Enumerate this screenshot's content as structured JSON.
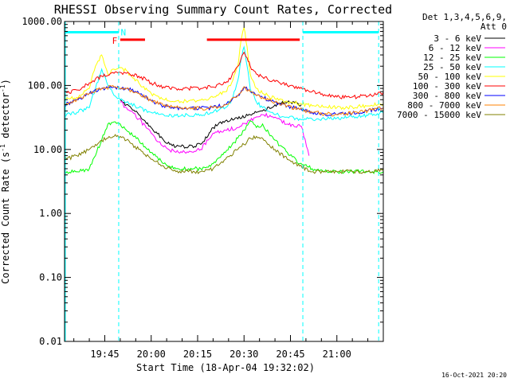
{
  "chart_data": {
    "type": "line",
    "title": "RHESSI Observing Summary Count Rates, Corrected",
    "xlabel": "Start Time (18-Apr-04 19:32:02)",
    "ylabel_main": "Corrected Count Rate (s",
    "ylabel_sup": "-1",
    "ylabel_end": " detector",
    "ylabel_sup2": "-1",
    "ylabel_close": ")",
    "yscale": "log",
    "ylim": [
      0.01,
      1000
    ],
    "xlim_min": [
      32,
      135
    ],
    "yticks": [
      {
        "v": 1000,
        "label": "1000.00"
      },
      {
        "v": 100,
        "label": "100.00"
      },
      {
        "v": 10,
        "label": "10.00"
      },
      {
        "v": 1,
        "label": "1.00"
      },
      {
        "v": 0.1,
        "label": "0.10"
      },
      {
        "v": 0.01,
        "label": "0.01"
      }
    ],
    "xticks": [
      {
        "t": 45,
        "label": "19:45"
      },
      {
        "t": 60,
        "label": "20:00"
      },
      {
        "t": 75,
        "label": "20:15"
      },
      {
        "t": 90,
        "label": "20:30"
      },
      {
        "t": 105,
        "label": "20:45"
      },
      {
        "t": 120,
        "label": "21:00"
      }
    ],
    "legend_header": [
      "Det 1,3,4,5,6,9,",
      "Att 0"
    ],
    "legend_placement": "right",
    "series": [
      {
        "name": "3 - 6 keV",
        "color": "#000000",
        "t": [
          50,
          52,
          56,
          60,
          64,
          68,
          72,
          76,
          80,
          84,
          88,
          92,
          96,
          100,
          104,
          108.5
        ],
        "y": [
          60,
          50,
          35,
          22,
          14,
          11,
          11,
          12,
          22,
          28,
          30,
          35,
          40,
          50,
          55,
          50
        ]
      },
      {
        "name": "6 - 12 keV",
        "color": "#ff00ff",
        "t": [
          50,
          52,
          56,
          60,
          64,
          68,
          72,
          76,
          80,
          84,
          88,
          92,
          96,
          100,
          104,
          108.5,
          111
        ],
        "y": [
          55,
          45,
          30,
          18,
          11,
          9,
          9,
          10,
          18,
          20,
          22,
          28,
          35,
          32,
          25,
          23,
          8
        ]
      },
      {
        "name": "12 - 25 keV",
        "color": "#00ff00",
        "t": [
          32,
          36,
          40,
          44,
          46,
          48,
          50,
          52,
          56,
          60,
          64,
          68,
          72,
          76,
          80,
          84,
          88,
          90,
          92,
          94,
          96,
          98,
          100,
          104,
          108,
          112,
          116,
          120,
          125,
          130,
          135
        ],
        "y": [
          4.5,
          4.5,
          5,
          14,
          25,
          27,
          25,
          20,
          14,
          9,
          6,
          5,
          5,
          5,
          6,
          9,
          15,
          20,
          28,
          22,
          25,
          18,
          14,
          9,
          6,
          5,
          4.5,
          4.5,
          4.5,
          4.5,
          4.5
        ]
      },
      {
        "name": "25 - 50 keV",
        "color": "#00ffff",
        "t": [
          32,
          36,
          40,
          42,
          44,
          46,
          48,
          50,
          52,
          56,
          60,
          64,
          68,
          72,
          76,
          80,
          84,
          86,
          88,
          89,
          90,
          91,
          92,
          94,
          96,
          100,
          104,
          108,
          112,
          116,
          120,
          125,
          130,
          135
        ],
        "y": [
          35,
          38,
          45,
          90,
          180,
          100,
          70,
          60,
          55,
          45,
          38,
          35,
          34,
          34,
          35,
          38,
          45,
          60,
          120,
          250,
          400,
          200,
          90,
          55,
          45,
          35,
          32,
          30,
          30,
          30,
          31,
          32,
          34,
          37
        ]
      },
      {
        "name": "50 - 100 keV",
        "color": "#ffff00",
        "t": [
          32,
          36,
          40,
          42,
          44,
          46,
          48,
          50,
          52,
          56,
          60,
          64,
          68,
          72,
          76,
          80,
          84,
          86,
          88,
          89,
          90,
          91,
          92,
          94,
          96,
          100,
          104,
          108,
          112,
          116,
          120,
          125,
          130,
          135
        ],
        "y": [
          60,
          65,
          90,
          200,
          300,
          150,
          180,
          190,
          170,
          110,
          75,
          60,
          57,
          57,
          59,
          65,
          80,
          110,
          200,
          500,
          800,
          400,
          150,
          90,
          75,
          62,
          56,
          52,
          48,
          46,
          45,
          46,
          48,
          52
        ]
      },
      {
        "name": "100 - 300 keV",
        "color": "#ff0000",
        "t": [
          32,
          36,
          40,
          44,
          48,
          50,
          52,
          56,
          60,
          64,
          68,
          72,
          76,
          80,
          84,
          86,
          88,
          89,
          90,
          91,
          92,
          94,
          96,
          100,
          104,
          108,
          112,
          116,
          120,
          125,
          130,
          135
        ],
        "y": [
          75,
          85,
          110,
          140,
          155,
          160,
          155,
          140,
          110,
          95,
          90,
          90,
          90,
          95,
          110,
          140,
          200,
          260,
          330,
          270,
          200,
          150,
          135,
          115,
          100,
          90,
          80,
          72,
          66,
          66,
          68,
          78
        ]
      },
      {
        "name": "300 - 800 keV",
        "color": "#0000ff",
        "t": [
          32,
          36,
          40,
          44,
          48,
          52,
          56,
          60,
          64,
          68,
          72,
          76,
          80,
          84,
          88,
          90,
          92,
          96,
          100,
          104,
          108,
          112,
          116,
          120,
          125,
          130,
          135
        ],
        "y": [
          50,
          60,
          75,
          90,
          95,
          90,
          75,
          58,
          48,
          45,
          44,
          44,
          45,
          50,
          70,
          95,
          80,
          65,
          55,
          48,
          42,
          38,
          36,
          35,
          37,
          40,
          45
        ]
      },
      {
        "name": "800 - 7000 keV",
        "color": "#ff8000",
        "t": [
          32,
          36,
          40,
          44,
          48,
          52,
          56,
          60,
          64,
          68,
          72,
          76,
          80,
          84,
          88,
          90,
          92,
          96,
          100,
          104,
          108,
          112,
          116,
          120,
          125,
          130,
          135
        ],
        "y": [
          50,
          60,
          75,
          90,
          95,
          90,
          75,
          58,
          48,
          45,
          44,
          44,
          45,
          50,
          70,
          95,
          80,
          65,
          55,
          48,
          42,
          38,
          36,
          35,
          37,
          40,
          45
        ]
      },
      {
        "name": "7000 - 15000 keV",
        "color": "#808000",
        "t": [
          32,
          36,
          40,
          44,
          46,
          48,
          50,
          52,
          56,
          60,
          64,
          68,
          72,
          76,
          80,
          84,
          88,
          90,
          92,
          94,
          96,
          98,
          100,
          104,
          108,
          112,
          116,
          120,
          125,
          130,
          135
        ],
        "y": [
          7,
          8,
          10,
          14,
          15,
          16,
          16,
          14,
          10,
          7,
          5.5,
          4.5,
          4.5,
          4.5,
          5,
          7,
          10,
          12,
          15,
          16,
          15,
          12,
          10,
          7,
          5.5,
          4.5,
          4.5,
          4.5,
          4.5,
          4.5,
          5
        ]
      }
    ],
    "markers": {
      "night_t": [
        49.5,
        109,
        133.5
      ],
      "night_lines": [
        {
          "t0": 32,
          "t1": 49.5,
          "level": 680,
          "color": "#00ffff"
        },
        {
          "t0": 109,
          "t1": 133.5,
          "level": 680,
          "color": "#00ffff"
        }
      ],
      "flare_lines": [
        {
          "t0": 50,
          "t1": 58,
          "level": 520,
          "color": "#ff0000"
        },
        {
          "t0": 78,
          "t1": 108,
          "level": 520,
          "color": "#ff0000"
        }
      ],
      "labels": [
        {
          "text": "F",
          "t": 48.2,
          "level": 500,
          "color": "#ff0000"
        },
        {
          "text": "N",
          "t": 51,
          "level": 680,
          "color": "#00ffff"
        }
      ]
    },
    "stamp": "16-Oct-2021 20:20"
  }
}
